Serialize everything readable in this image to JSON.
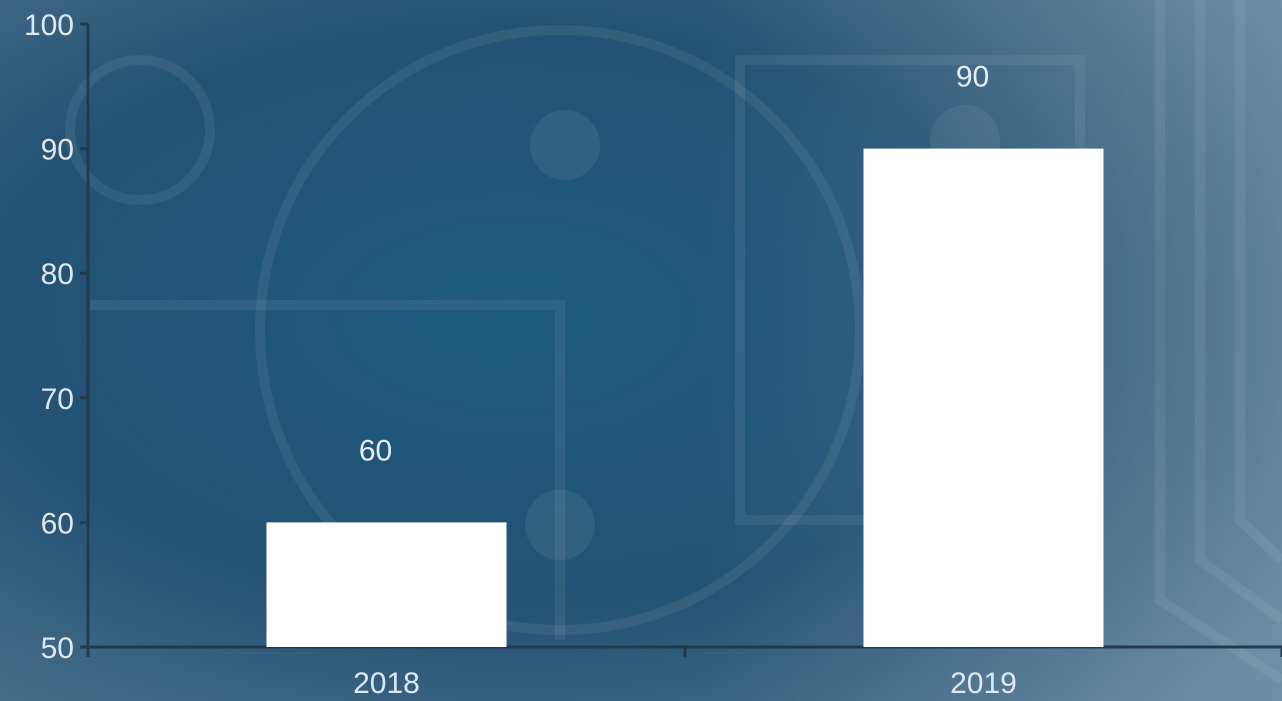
{
  "chart_data": {
    "type": "bar",
    "categories": [
      "2018",
      "2019"
    ],
    "values": [
      60,
      90
    ],
    "data_labels": [
      "60",
      "90"
    ],
    "title": "",
    "xlabel": "",
    "ylabel": "",
    "ylim": [
      50,
      100
    ],
    "yticks": [
      50,
      60,
      70,
      80,
      90,
      100
    ],
    "grid": false,
    "legend": "none",
    "colors": {
      "bar": "#ffffff",
      "axis": "#223a4e",
      "text": "#dfe7ee",
      "background_dark": "#1b4a69",
      "background_light": "#5f8aa6"
    }
  }
}
